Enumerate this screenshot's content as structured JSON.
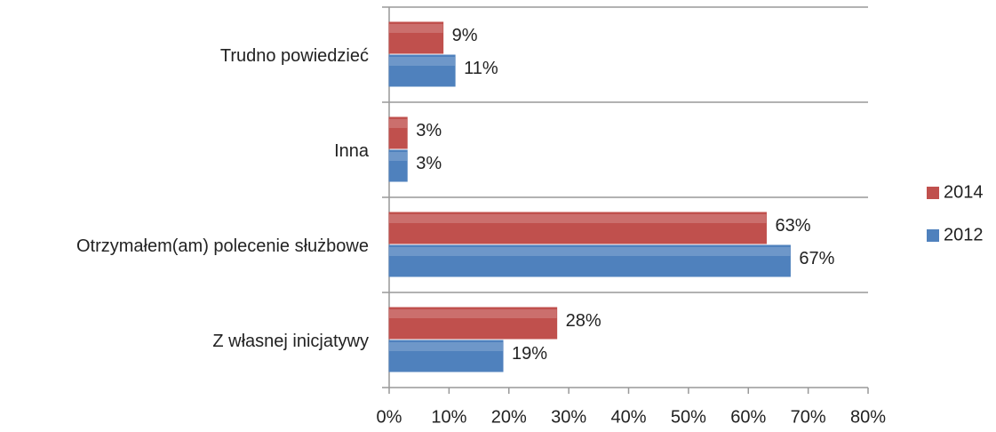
{
  "chart_data": {
    "type": "bar",
    "orientation": "horizontal",
    "categories": [
      "Trudno powiedzieć",
      "Inna",
      "Otrzymałem(am) polecenie służbowe",
      "Z własnej inicjatywy"
    ],
    "series": [
      {
        "name": "2014",
        "color": "#c0504d",
        "values": [
          9,
          3,
          63,
          28
        ],
        "value_labels": [
          "9%",
          "3%",
          "63%",
          "28%"
        ]
      },
      {
        "name": "2012",
        "color": "#4f81bd",
        "values": [
          11,
          3,
          67,
          19
        ],
        "value_labels": [
          "11%",
          "3%",
          "67%",
          "19%"
        ]
      }
    ],
    "xlim": [
      0,
      80
    ],
    "xticks": [
      {
        "value": 0,
        "label": "0%"
      },
      {
        "value": 10,
        "label": "10%"
      },
      {
        "value": 20,
        "label": "20%"
      },
      {
        "value": 30,
        "label": "30%"
      },
      {
        "value": 40,
        "label": "40%"
      },
      {
        "value": 50,
        "label": "50%"
      },
      {
        "value": 60,
        "label": "60%"
      },
      {
        "value": 70,
        "label": "70%"
      },
      {
        "value": 80,
        "label": "80%"
      }
    ],
    "legend": "right"
  }
}
